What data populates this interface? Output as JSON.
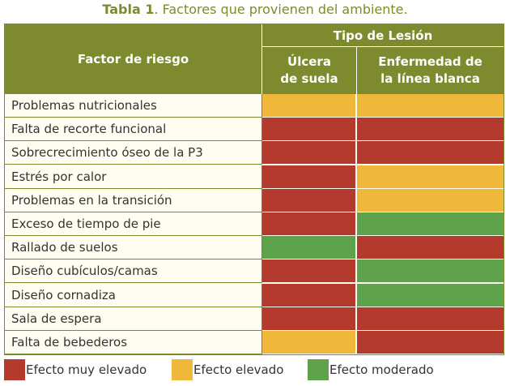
{
  "caption": {
    "label": "Tabla 1",
    "text": ". Factores que provienen del ambiente."
  },
  "header": {
    "factor": "Factor de riesgo",
    "tipo": "Tipo de Lesión",
    "col1_line1": "Úlcera",
    "col1_line2": "de suela",
    "col2_line1": "Enfermedad de",
    "col2_line2": "la línea blanca"
  },
  "colors": {
    "muy_elevado": "#b33a2c",
    "elevado": "#efb83a",
    "moderado": "#5ea24c"
  },
  "rows": [
    {
      "factor": "Problemas nutricionales",
      "ulcera": "elevado",
      "linea_blanca": "elevado"
    },
    {
      "factor": "Falta de recorte funcional",
      "ulcera": "muy_elevado",
      "linea_blanca": "muy_elevado"
    },
    {
      "factor": "Sobrecrecimiento óseo de la P3",
      "ulcera": "muy_elevado",
      "linea_blanca": "muy_elevado"
    },
    {
      "factor": "Estrés por calor",
      "ulcera": "muy_elevado",
      "linea_blanca": "elevado"
    },
    {
      "factor": "Problemas en la transición",
      "ulcera": "muy_elevado",
      "linea_blanca": "elevado"
    },
    {
      "factor": "Exceso de tiempo de pie",
      "ulcera": "muy_elevado",
      "linea_blanca": "moderado"
    },
    {
      "factor": "Rallado de suelos",
      "ulcera": "moderado",
      "linea_blanca": "muy_elevado"
    },
    {
      "factor": "Diseño cubículos/camas",
      "ulcera": "muy_elevado",
      "linea_blanca": "moderado"
    },
    {
      "factor": "Diseño cornadiza",
      "ulcera": "muy_elevado",
      "linea_blanca": "moderado"
    },
    {
      "factor": "Sala de espera",
      "ulcera": "muy_elevado",
      "linea_blanca": "muy_elevado"
    },
    {
      "factor": "Falta de bebederos",
      "ulcera": "elevado",
      "linea_blanca": "muy_elevado"
    }
  ],
  "legend": [
    {
      "key": "muy_elevado",
      "label": "Efecto muy elevado"
    },
    {
      "key": "elevado",
      "label": "Efecto elevado"
    },
    {
      "key": "moderado",
      "label": "Efecto moderado"
    }
  ]
}
